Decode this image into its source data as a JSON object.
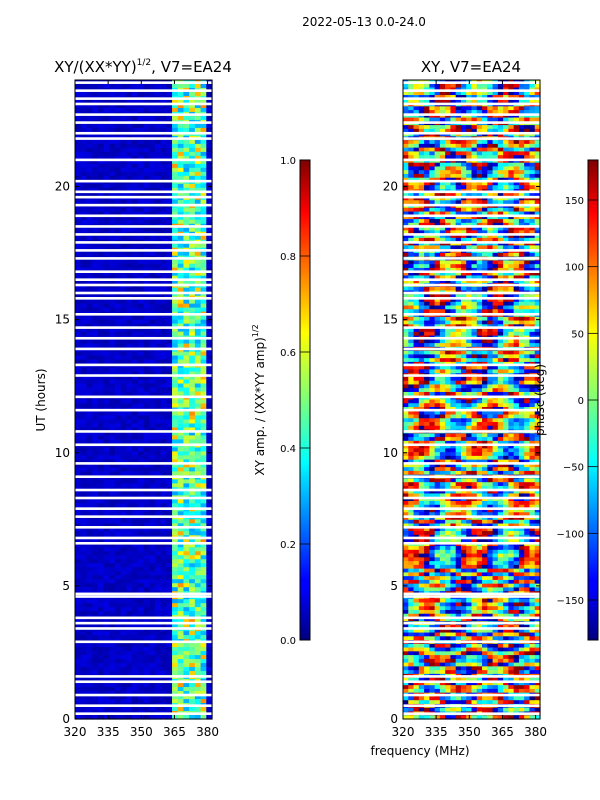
{
  "suptitle": "2022-05-13 0.0-24.0",
  "chart_data": [
    {
      "type": "heatmap",
      "title_main": "XY/(XX*YY)",
      "title_sup": "1/2",
      "title_tail": ", V7=EA24",
      "xlabel": "",
      "ylabel": "UT (hours)",
      "x_range": [
        320,
        382
      ],
      "y_range": [
        0,
        24
      ],
      "x_ticks": [
        320,
        335,
        350,
        365,
        380
      ],
      "y_ticks": [
        0,
        5,
        10,
        15,
        20
      ],
      "bright_band_MHz": [
        364,
        380
      ],
      "colorbar": {
        "label_main": "XY amp. / (XX*YY amp)",
        "label_sup": "1/2",
        "range": [
          0.0,
          1.0
        ],
        "ticks": [
          "0.0",
          "0.2",
          "0.4",
          "0.6",
          "0.8",
          "1.0"
        ],
        "colormap": "jet"
      }
    },
    {
      "type": "heatmap",
      "title": "XY, V7=EA24",
      "xlabel": "frequency (MHz)",
      "ylabel": "",
      "x_range": [
        320,
        382
      ],
      "y_range": [
        0,
        24
      ],
      "x_ticks": [
        320,
        335,
        350,
        365,
        380
      ],
      "y_ticks": [
        0,
        5,
        10,
        15,
        20
      ],
      "colorbar": {
        "label": "phase (deg)",
        "range": [
          -180,
          180
        ],
        "ticks": [
          -150,
          -100,
          -50,
          0,
          50,
          100,
          150
        ],
        "tick_labels": [
          "−150",
          "−100",
          "−50",
          "0",
          "50",
          "100",
          "150"
        ],
        "colormap": "jet"
      }
    }
  ],
  "flagged_rows_hours": [
    0.2,
    0.5,
    0.9,
    1.4,
    1.6,
    2.9,
    3.4,
    3.6,
    3.8,
    4.6,
    4.7,
    6.6,
    6.8,
    7.2,
    7.6,
    7.9,
    8.3,
    8.6,
    9.1,
    9.6,
    10.3,
    10.8,
    11.6,
    12.1,
    12.9,
    13.3,
    13.9,
    14.3,
    14.7,
    15.2,
    15.8,
    16.0,
    16.3,
    16.5,
    16.8,
    17.3,
    17.6,
    17.9,
    18.2,
    18.5,
    18.9,
    19.3,
    19.6,
    19.8,
    20.2,
    21.0,
    21.8,
    22.0,
    22.4,
    22.7,
    23.1,
    23.3,
    23.6,
    23.9
  ]
}
